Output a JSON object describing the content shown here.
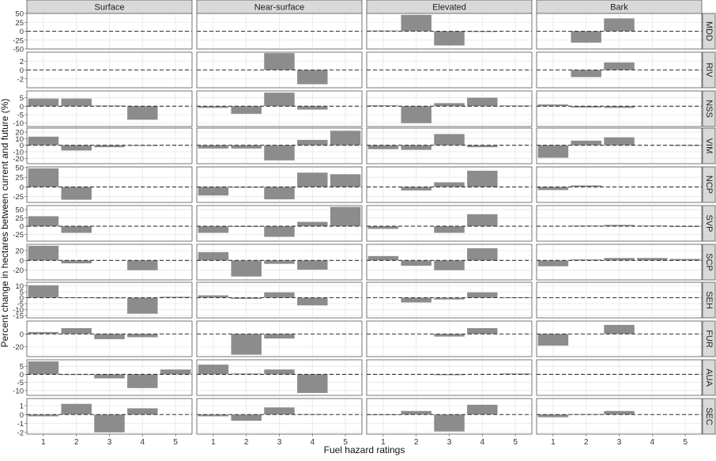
{
  "chart_data": {
    "type": "bar",
    "layout": "facet-grid",
    "columns": [
      "Surface",
      "Near-surface",
      "Elevated",
      "Bark"
    ],
    "rows": [
      "MDD",
      "RIV",
      "NSS",
      "VIM",
      "NCP",
      "SVP",
      "SCP",
      "SEH",
      "FUR",
      "AUA",
      "SEC"
    ],
    "categories": [
      "1",
      "2",
      "3",
      "4",
      "5"
    ],
    "xlabel": "Fuel hazard ratings",
    "ylabel": "Percent change in hectares between current and future (%)",
    "reference_line": {
      "y": 0,
      "style": "dashed"
    },
    "grid": true,
    "bar_color": "#8c8c8c",
    "strip_color": "#d9d9d9",
    "panels": [
      {
        "row": "MDD",
        "ylim": [
          -50,
          50
        ],
        "yticks": [
          50,
          25,
          0,
          -25,
          -50
        ],
        "values": [
          [
            null,
            null,
            null,
            null,
            null
          ],
          [
            null,
            null,
            null,
            null,
            null
          ],
          [
            2,
            46,
            -40,
            -2,
            null
          ],
          [
            null,
            -32,
            36,
            null,
            null
          ]
        ]
      },
      {
        "row": "RIV",
        "ylim": [
          -4,
          4
        ],
        "yticks": [
          2,
          0,
          -2
        ],
        "values": [
          [
            null,
            null,
            null,
            null,
            null
          ],
          [
            null,
            null,
            3.8,
            -3.2,
            null
          ],
          [
            null,
            null,
            null,
            null,
            null
          ],
          [
            null,
            -1.6,
            1.7,
            null,
            null
          ]
        ]
      },
      {
        "row": "NSS",
        "ylim": [
          -12,
          9
        ],
        "yticks": [
          5,
          0,
          -5,
          -10
        ],
        "values": [
          [
            4.5,
            4.5,
            0.4,
            -8,
            null
          ],
          [
            -1,
            -4.5,
            8,
            -2,
            null
          ],
          [
            0.5,
            -10,
            1.8,
            5,
            0.4
          ],
          [
            1,
            -0.8,
            -1,
            null,
            null
          ]
        ]
      },
      {
        "row": "VIM",
        "ylim": [
          -28,
          26
        ],
        "yticks": [
          20,
          10,
          0,
          -10,
          -20
        ],
        "values": [
          [
            13,
            -8,
            -3,
            -1,
            null
          ],
          [
            -5,
            -5,
            -23,
            8,
            22
          ],
          [
            -6,
            -7,
            17,
            -3,
            null
          ],
          [
            -19,
            7,
            12,
            null,
            0
          ]
        ]
      },
      {
        "row": "NCP",
        "ylim": [
          -40,
          52
        ],
        "yticks": [
          50,
          25,
          0,
          -25
        ],
        "values": [
          [
            48,
            -33,
            null,
            null,
            null
          ],
          [
            -22,
            -2,
            -32,
            37,
            33
          ],
          [
            null,
            -9,
            12,
            42,
            null
          ],
          [
            -8,
            4,
            null,
            null,
            null
          ]
        ]
      },
      {
        "row": "SVP",
        "ylim": [
          -45,
          62
        ],
        "yticks": [
          50,
          25,
          0,
          -25
        ],
        "values": [
          [
            30,
            -20,
            null,
            null,
            null
          ],
          [
            -20,
            -2,
            -32,
            13,
            58
          ],
          [
            -8,
            null,
            -20,
            36,
            null
          ],
          [
            null,
            2,
            4,
            2,
            -2
          ]
        ]
      },
      {
        "row": "SCP",
        "ylim": [
          -40,
          33
        ],
        "yticks": [
          20,
          0,
          -20
        ],
        "values": [
          [
            30,
            -6,
            null,
            -20,
            null
          ],
          [
            17,
            -33,
            -7,
            -19,
            null
          ],
          [
            9,
            -11,
            -20,
            25,
            null
          ],
          [
            -12,
            2,
            5,
            5,
            3
          ]
        ]
      },
      {
        "row": "SEH",
        "ylim": [
          -17,
          13
        ],
        "yticks": [
          10,
          5,
          0,
          -5,
          -10,
          -15
        ],
        "values": [
          [
            10.5,
            0.3,
            -0.3,
            -13.5,
            0.8
          ],
          [
            2,
            -1,
            4.5,
            -6.5,
            null
          ],
          [
            null,
            -4,
            -1.5,
            4.5,
            0.3
          ],
          [
            null,
            null,
            null,
            null,
            null
          ]
        ]
      },
      {
        "row": "FUR",
        "ylim": [
          -35,
          20
        ],
        "yticks": [
          0,
          -20
        ],
        "values": [
          [
            3,
            9,
            -8,
            -5,
            null
          ],
          [
            null,
            -32,
            -7,
            null,
            null
          ],
          [
            null,
            null,
            -4,
            9,
            null
          ],
          [
            -18,
            null,
            14,
            null,
            null
          ]
        ]
      },
      {
        "row": "AUA",
        "ylim": [
          -13,
          9
        ],
        "yticks": [
          5,
          0,
          -5,
          -10
        ],
        "values": [
          [
            8,
            0,
            -2.5,
            -8.5,
            3
          ],
          [
            6,
            0.5,
            3,
            -11.5,
            null
          ],
          [
            null,
            null,
            -0.5,
            null,
            0.5
          ],
          [
            null,
            null,
            null,
            null,
            null
          ]
        ]
      },
      {
        "row": "SEC",
        "ylim": [
          -2.2,
          1.8
        ],
        "yticks": [
          1,
          0,
          -1,
          -2
        ],
        "values": [
          [
            -0.2,
            1.2,
            -2,
            0.7,
            null
          ],
          [
            -0.2,
            -0.7,
            0.8,
            0.05,
            null
          ],
          [
            0,
            0.4,
            -1.9,
            1.1,
            null
          ],
          [
            -0.3,
            0.05,
            0.4,
            null,
            null
          ]
        ]
      }
    ]
  }
}
